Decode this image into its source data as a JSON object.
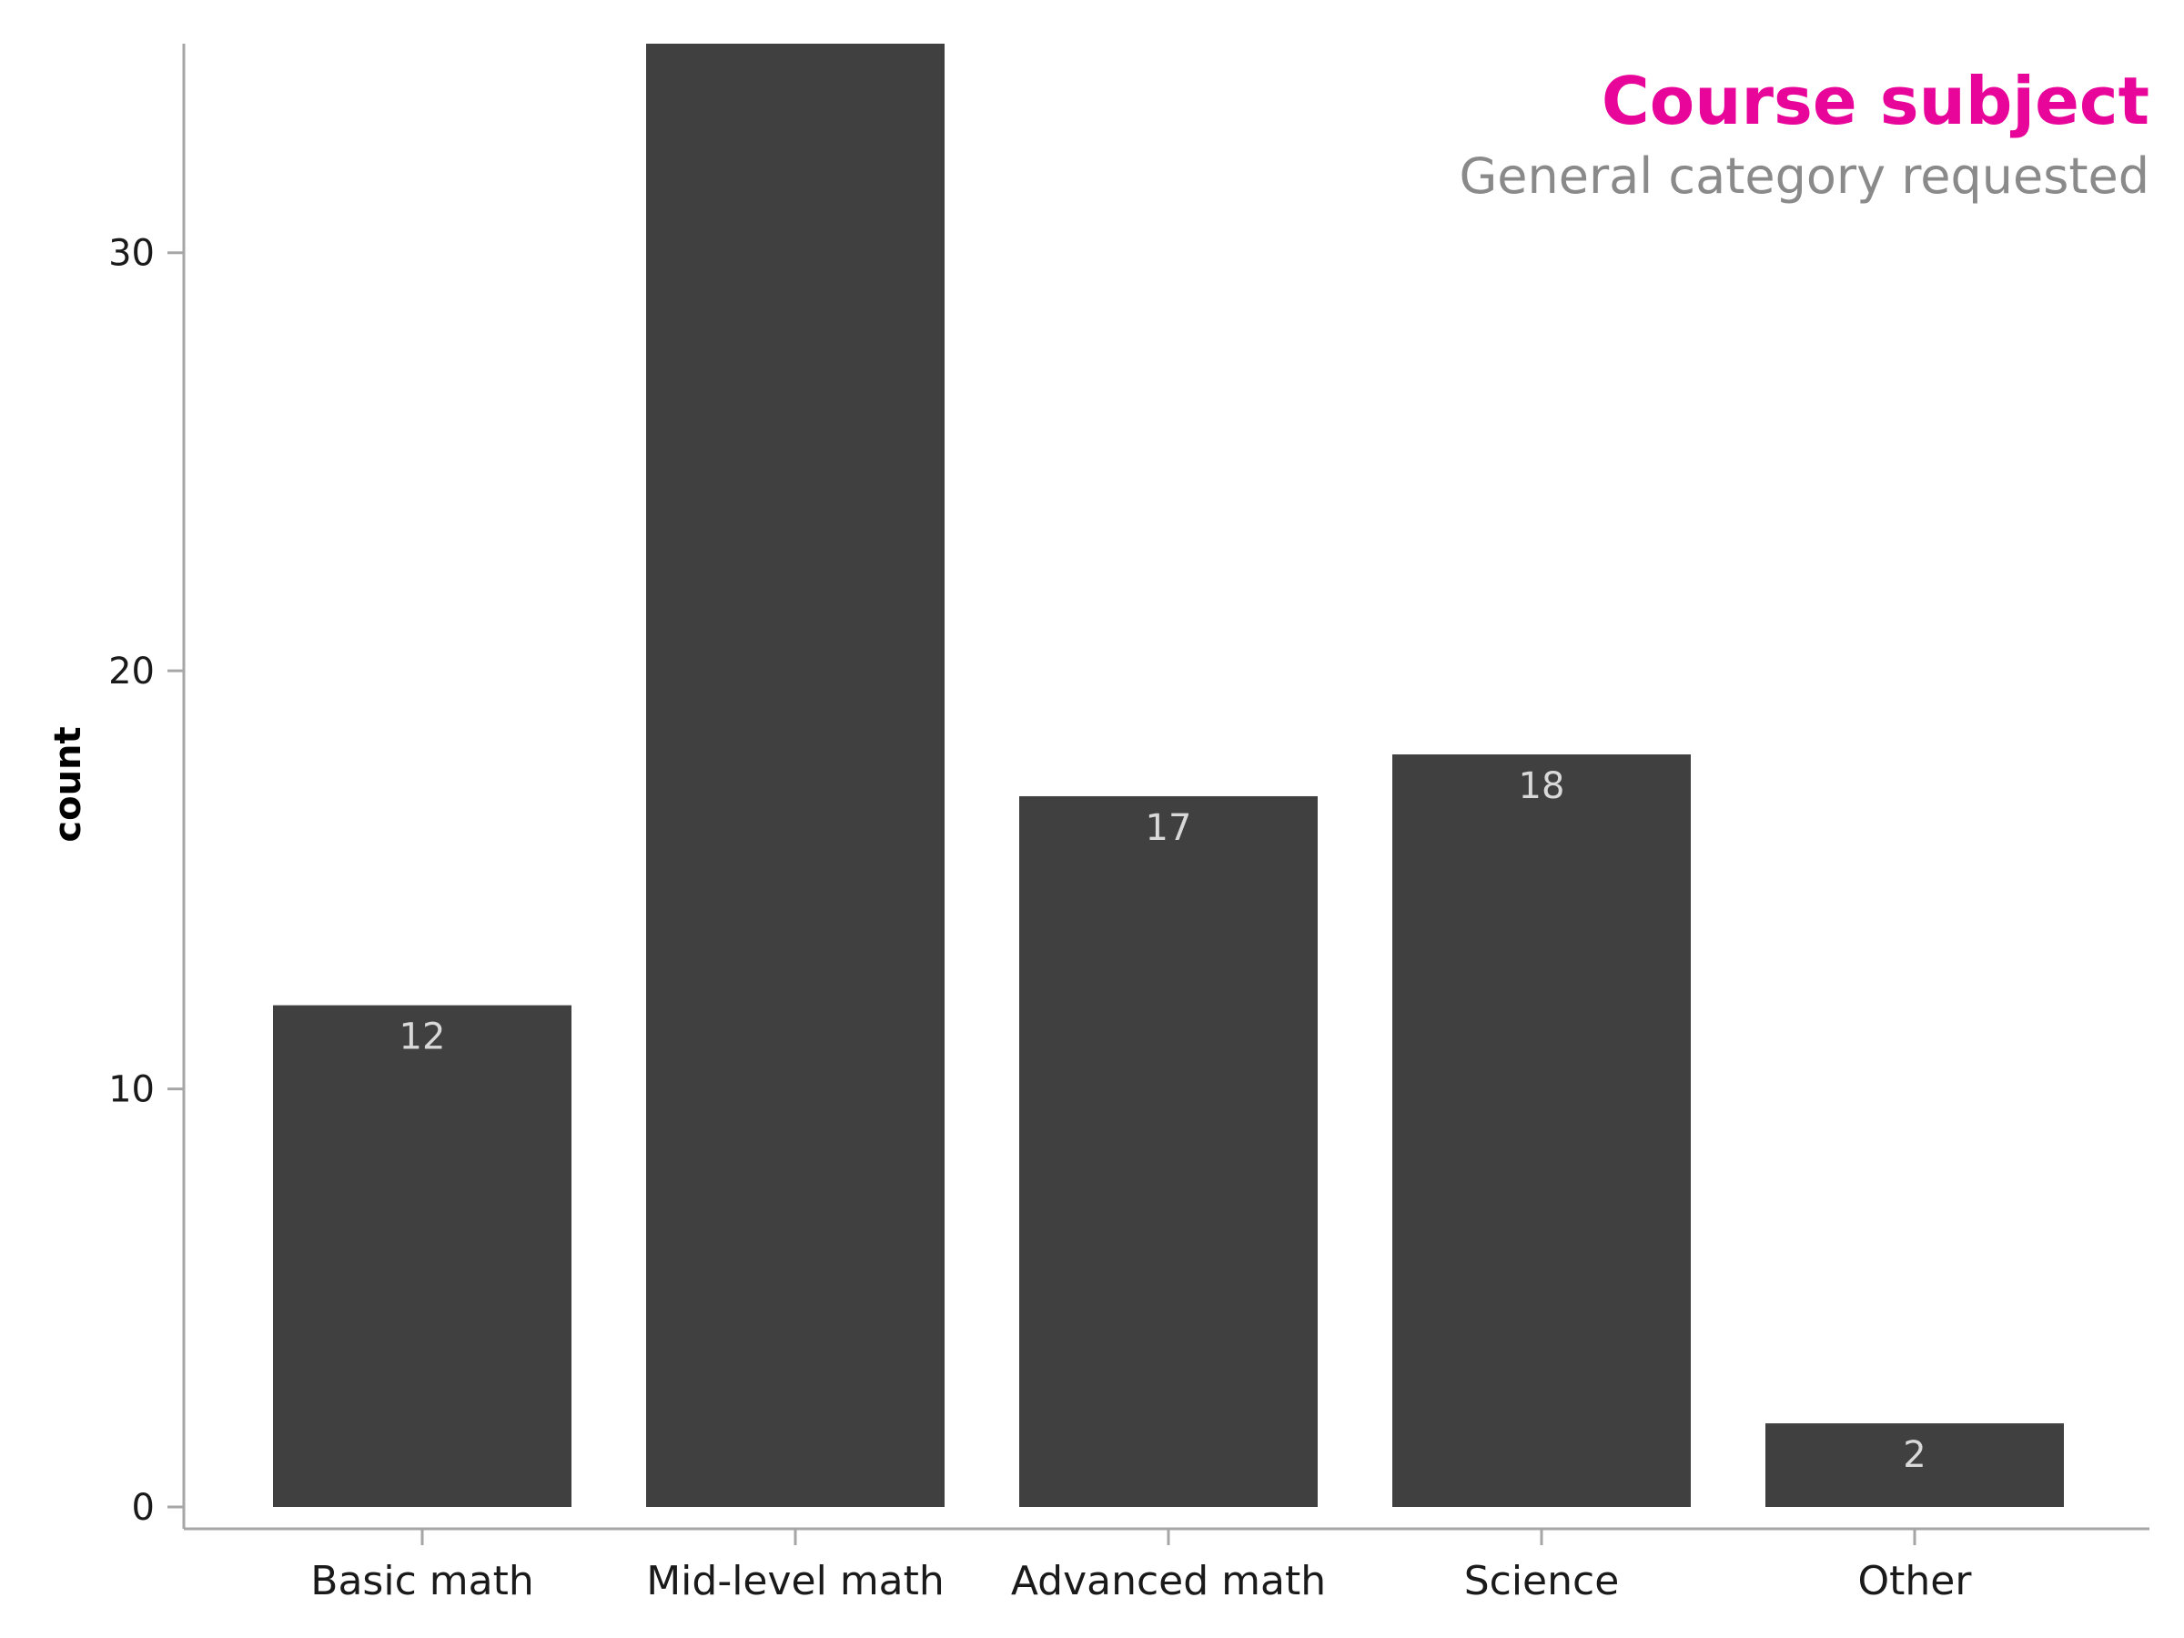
{
  "chart_data": {
    "type": "bar",
    "title": "Course subject",
    "subtitle": "General category requested",
    "xlabel": "",
    "ylabel": "count",
    "categories": [
      "Basic math",
      "Mid-level math",
      "Advanced math",
      "Science",
      "Other"
    ],
    "values": [
      12,
      35,
      17,
      18,
      2
    ],
    "data_labels": [
      "12",
      "",
      "17",
      "18",
      "2"
    ],
    "ylim": [
      0,
      35
    ],
    "yticks": [
      0,
      10,
      20,
      30
    ],
    "grid": false,
    "legend": "none",
    "colors": {
      "bar": "#404040",
      "title": "#e8069a",
      "subtitle": "#8a8a8a",
      "axis": "#a6a6a6",
      "data_label": "#d9d9d9"
    }
  }
}
